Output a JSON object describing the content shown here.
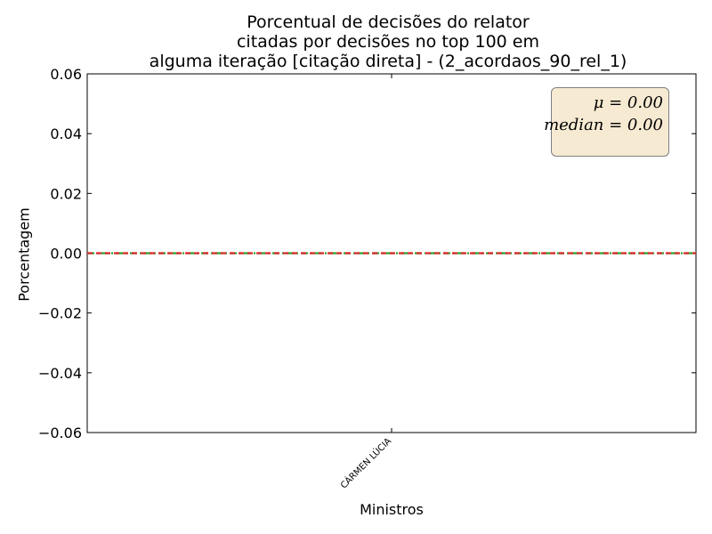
{
  "chart_data": {
    "type": "bar",
    "title_lines": [
      "Porcentual de decisões do relator",
      "citadas por decisões no top 100 em",
      "alguma iteração [citação direta] - (2_acordaos_90_rel_1)"
    ],
    "xlabel": "Ministros",
    "ylabel": "Porcentagem",
    "categories": [
      "CÁRMEN LÚCIA"
    ],
    "values": [
      0.0
    ],
    "ylim": [
      -0.06,
      0.06
    ],
    "yticks": [
      -0.06,
      -0.04,
      -0.02,
      0.0,
      0.02,
      0.04,
      0.06
    ],
    "ytick_labels": [
      "−0.06",
      "−0.04",
      "−0.02",
      "0.00",
      "0.02",
      "0.04",
      "0.06"
    ],
    "reference_lines": [
      {
        "name": "mean",
        "value": 0.0,
        "color": "#2ca02c",
        "style": "dashdot"
      },
      {
        "name": "median",
        "value": 0.0,
        "color": "#d62728",
        "style": "dashed"
      }
    ],
    "stats_box": {
      "mean_text": "μ = 0.00",
      "median_text": "median = 0.00",
      "placement": "top-right",
      "background": "#f7ead3"
    },
    "grid": false,
    "legend": "none"
  }
}
